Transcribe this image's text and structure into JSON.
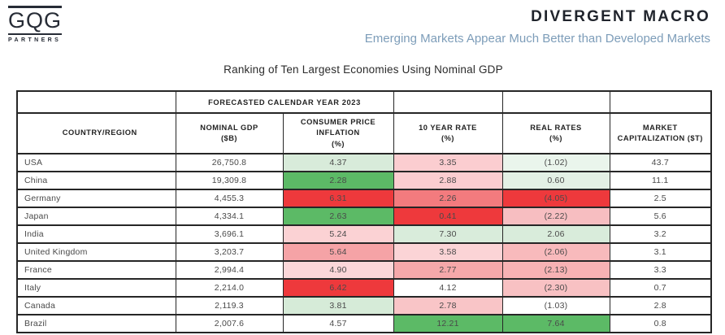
{
  "logo": {
    "name": "GQG",
    "subtitle": "PARTNERS"
  },
  "header": {
    "title": "DIVERGENT MACRO",
    "subtitle": "Emerging Markets Appear Much Better than Developed Markets",
    "subtitle_color": "#7d9db9",
    "title_color": "#20242c"
  },
  "table": {
    "title": "Ranking of Ten Largest Economies Using Nominal GDP",
    "span_header": "FORECASTED CALENDAR YEAR 2023",
    "columns": [
      {
        "label": "COUNTRY/REGION",
        "unit": ""
      },
      {
        "label": "NOMINAL GDP",
        "unit": "($B)"
      },
      {
        "label": "CONSUMER PRICE INFLATION",
        "unit": "(%)"
      },
      {
        "label": "10 YEAR RATE",
        "unit": "(%)"
      },
      {
        "label": "REAL RATES",
        "unit": "(%)"
      },
      {
        "label": "MARKET CAPITALIZATION ($T)",
        "unit": ""
      }
    ],
    "heat_colors": {
      "strong_green": "#5cba66",
      "strong_red": "#ee393c",
      "white": "#ffffff"
    },
    "rows": [
      {
        "country": "USA",
        "gdp": "26,750.8",
        "cpi": {
          "v": "4.37",
          "bg": "#d8ebda"
        },
        "rate10": {
          "v": "3.35",
          "bg": "#fbcdd0"
        },
        "real": {
          "v": "(1.02)",
          "bg": "#eaf5ec"
        },
        "mcap": "43.7"
      },
      {
        "country": "China",
        "gdp": "19,309.8",
        "cpi": {
          "v": "2.28",
          "bg": "#5cba66"
        },
        "rate10": {
          "v": "2.88",
          "bg": "#fbcdd0"
        },
        "real": {
          "v": "0.60",
          "bg": "#e3f0e5"
        },
        "mcap": "11.1"
      },
      {
        "country": "Germany",
        "gdp": "4,455.3",
        "cpi": {
          "v": "6.31",
          "bg": "#ee393c"
        },
        "rate10": {
          "v": "2.26",
          "bg": "#f37b7e"
        },
        "real": {
          "v": "(4.05)",
          "bg": "#ee393c"
        },
        "mcap": "2.5"
      },
      {
        "country": "Japan",
        "gdp": "4,334.1",
        "cpi": {
          "v": "2.63",
          "bg": "#5cba66"
        },
        "rate10": {
          "v": "0.41",
          "bg": "#ee393c"
        },
        "real": {
          "v": "(2.22)",
          "bg": "#f7bec1"
        },
        "mcap": "5.6"
      },
      {
        "country": "India",
        "gdp": "3,696.1",
        "cpi": {
          "v": "5.24",
          "bg": "#fbd2d4"
        },
        "rate10": {
          "v": "7.30",
          "bg": "#d9ecdb"
        },
        "real": {
          "v": "2.06",
          "bg": "#d9ecdb"
        },
        "mcap": "3.2"
      },
      {
        "country": "United Kingdom",
        "gdp": "3,203.7",
        "cpi": {
          "v": "5.64",
          "bg": "#f5a3a6"
        },
        "rate10": {
          "v": "3.58",
          "bg": "#fbd4d6"
        },
        "real": {
          "v": "(2.06)",
          "bg": "#f8babc"
        },
        "mcap": "3.1"
      },
      {
        "country": "France",
        "gdp": "2,994.4",
        "cpi": {
          "v": "4.90",
          "bg": "#fbd7d9"
        },
        "rate10": {
          "v": "2.77",
          "bg": "#f5a8aa"
        },
        "real": {
          "v": "(2.13)",
          "bg": "#f7b2b4"
        },
        "mcap": "3.3"
      },
      {
        "country": "Italy",
        "gdp": "2,214.0",
        "cpi": {
          "v": "6.42",
          "bg": "#ee393c"
        },
        "rate10": {
          "v": "4.12",
          "bg": "#ffffff"
        },
        "real": {
          "v": "(2.30)",
          "bg": "#f8c1c3"
        },
        "mcap": "0.7"
      },
      {
        "country": "Canada",
        "gdp": "2,119.3",
        "cpi": {
          "v": "3.81",
          "bg": "#d6ebd8"
        },
        "rate10": {
          "v": "2.78",
          "bg": "#f9c5c7"
        },
        "real": {
          "v": "(1.03)",
          "bg": "#ffffff"
        },
        "mcap": "2.8"
      },
      {
        "country": "Brazil",
        "gdp": "2,007.6",
        "cpi": {
          "v": "4.57",
          "bg": "#ffffff"
        },
        "rate10": {
          "v": "12.21",
          "bg": "#5cba66"
        },
        "real": {
          "v": "7.64",
          "bg": "#5cba66"
        },
        "mcap": "0.8"
      }
    ]
  }
}
